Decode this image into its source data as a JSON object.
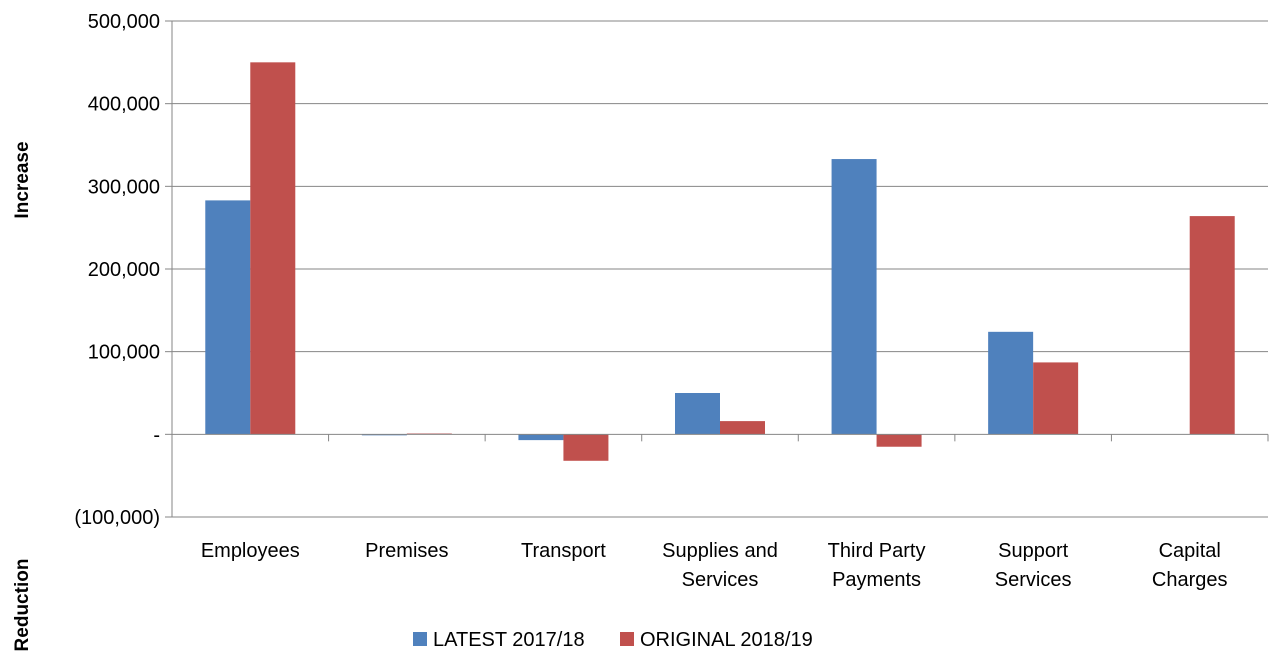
{
  "chart_data": {
    "type": "bar",
    "categories": [
      [
        "Employees"
      ],
      [
        "Premises"
      ],
      [
        "Transport"
      ],
      [
        "Supplies and",
        "Services"
      ],
      [
        "Third Party",
        "Payments"
      ],
      [
        "Support",
        "Services"
      ],
      [
        "Capital",
        "Charges"
      ]
    ],
    "series": [
      {
        "name": "LATEST 2017/18",
        "color": "#4F81BD",
        "values": [
          283000,
          -1000,
          -7000,
          50000,
          333000,
          124000,
          0
        ]
      },
      {
        "name": "ORIGINAL 2018/19",
        "color": "#C0504D",
        "values": [
          450000,
          1000,
          -32000,
          16000,
          -15000,
          87000,
          264000
        ]
      }
    ],
    "ylim": [
      -100000,
      500000
    ],
    "yticks": [
      500000,
      400000,
      300000,
      200000,
      100000,
      0,
      -100000
    ],
    "ytick_labels": [
      "500,000",
      "400,000",
      "300,000",
      "200,000",
      "100,000",
      "-",
      "(100,000)"
    ],
    "ylabel_top": "Increase",
    "ylabel_bottom": "Reduction",
    "grid": true,
    "legend_position": "bottom"
  }
}
